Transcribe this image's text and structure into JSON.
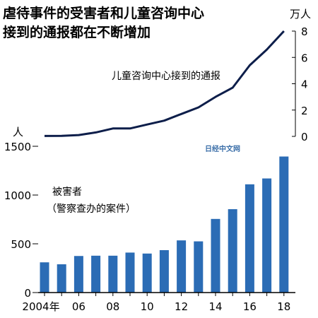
{
  "chart_data": {
    "type": "bar+line",
    "title_lines": [
      "虐待事件的受害者和儿童咨询中心",
      "接到的通报都在不断增加"
    ],
    "categories": [
      "2004",
      "2005",
      "2006",
      "2007",
      "2008",
      "2009",
      "2010",
      "2011",
      "2012",
      "2013",
      "2014",
      "2015",
      "2016",
      "2017",
      "2018"
    ],
    "x_tick_labels": [
      "2004年",
      "",
      "06",
      "",
      "08",
      "",
      "10",
      "",
      "12",
      "",
      "14",
      "",
      "16",
      "",
      "18"
    ],
    "bar_series": {
      "label_lines": [
        "被害者",
        "（警察查办的案件）"
      ],
      "unit": "人",
      "values": [
        310,
        290,
        375,
        378,
        378,
        410,
        400,
        435,
        535,
        525,
        755,
        855,
        1110,
        1170,
        1395
      ],
      "ylim": [
        0,
        1500
      ],
      "yticks": [
        0,
        500,
        1000,
        1500
      ],
      "color": "#2b6cb5"
    },
    "line_series": {
      "label": "儿童咨询中心接到的通报",
      "unit": "万人",
      "values": [
        0.03,
        0.04,
        0.1,
        0.3,
        0.6,
        0.6,
        0.9,
        1.2,
        1.7,
        2.2,
        3.0,
        3.7,
        5.4,
        6.6,
        8.0
      ],
      "ylim": [
        0,
        8
      ],
      "yticks": [
        0,
        2,
        4,
        6,
        8
      ],
      "color": "#0d1e4a"
    },
    "watermark": "日经中文网"
  }
}
